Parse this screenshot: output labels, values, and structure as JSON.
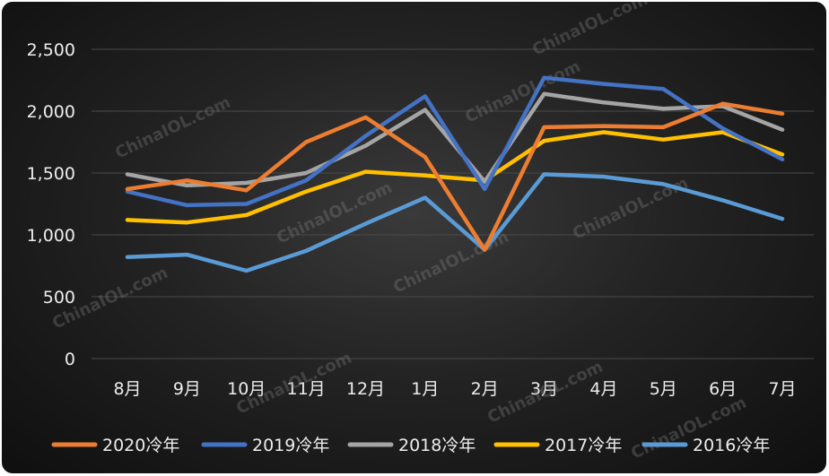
{
  "chart_data": {
    "type": "line",
    "title": "",
    "xlabel": "",
    "ylabel": "",
    "categories": [
      "8月",
      "9月",
      "10月",
      "11月",
      "12月",
      "1月",
      "2月",
      "3月",
      "4月",
      "5月",
      "6月",
      "7月"
    ],
    "ylim": [
      0,
      2500
    ],
    "yticks": [
      "0",
      "500",
      "1,000",
      "1,500",
      "2,000",
      "2,500"
    ],
    "grid": true,
    "legend_position": "bottom",
    "series": [
      {
        "name": "2020冷年",
        "color": "#ED7D31",
        "values": [
          1370,
          1440,
          1360,
          1750,
          1950,
          1630,
          880,
          1870,
          1880,
          1870,
          2060,
          1980
        ]
      },
      {
        "name": "2019冷年",
        "color": "#4472C4",
        "values": [
          1350,
          1240,
          1250,
          1440,
          1800,
          2120,
          1370,
          2270,
          2220,
          2180,
          1860,
          1610
        ]
      },
      {
        "name": "2018冷年",
        "color": "#A5A5A5",
        "values": [
          1490,
          1400,
          1420,
          1500,
          1720,
          2010,
          1430,
          2140,
          2070,
          2020,
          2040,
          1850
        ]
      },
      {
        "name": "2017冷年",
        "color": "#FFC000",
        "values": [
          1120,
          1100,
          1160,
          1350,
          1510,
          1480,
          1440,
          1760,
          1830,
          1770,
          1830,
          1650
        ]
      },
      {
        "name": "2016冷年",
        "color": "#5B9BD5",
        "values": [
          820,
          840,
          710,
          870,
          1090,
          1300,
          880,
          1490,
          1470,
          1410,
          1280,
          1130
        ]
      }
    ]
  },
  "watermark": "ChinaIOL.com"
}
